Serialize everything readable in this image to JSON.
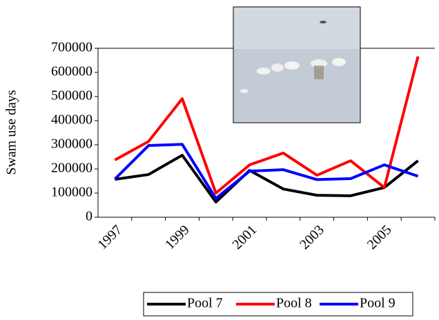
{
  "chart_data": {
    "type": "line",
    "y_label": "Swam use days",
    "categories": [
      "1997",
      null,
      "1999",
      null,
      "2001",
      null,
      "2003",
      null,
      "2005",
      null
    ],
    "series": [
      {
        "name": "Pool 7",
        "color": "#000000",
        "values": [
          157000,
          177000,
          257000,
          63000,
          194000,
          117000,
          91000,
          89000,
          123000,
          234000
        ]
      },
      {
        "name": "Pool 8",
        "color": "#ff0000",
        "values": [
          237000,
          314000,
          491000,
          100000,
          217000,
          266000,
          174000,
          234000,
          123000,
          666000
        ]
      },
      {
        "name": "Pool 9",
        "color": "#0000ff",
        "values": [
          158000,
          297000,
          302000,
          78000,
          191000,
          197000,
          156000,
          160000,
          217000,
          170000
        ]
      }
    ],
    "ylim": [
      0,
      700000
    ],
    "yticks": [
      0,
      100000,
      200000,
      300000,
      400000,
      500000,
      600000,
      700000
    ],
    "grid": false,
    "legend": "bottom"
  }
}
